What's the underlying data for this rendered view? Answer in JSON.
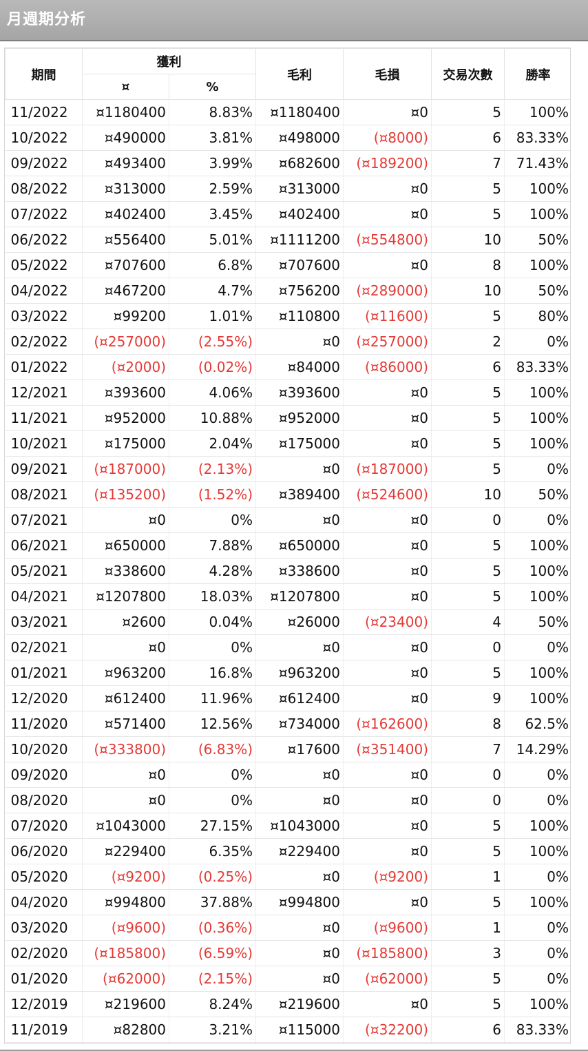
{
  "title": "月週期分析",
  "table": {
    "headers": {
      "period": "期間",
      "profit": "獲利",
      "profit_amount": "¤",
      "profit_pct": "%",
      "gross_profit": "毛利",
      "gross_loss": "毛損",
      "trade_count": "交易次數",
      "win_rate": "勝率"
    },
    "rows": [
      [
        "11/2022",
        "¤1180400",
        "8.83%",
        "¤1180400",
        "¤0",
        "5",
        "100%"
      ],
      [
        "10/2022",
        "¤490000",
        "3.81%",
        "¤498000",
        "(¤8000)",
        "6",
        "83.33%"
      ],
      [
        "09/2022",
        "¤493400",
        "3.99%",
        "¤682600",
        "(¤189200)",
        "7",
        "71.43%"
      ],
      [
        "08/2022",
        "¤313000",
        "2.59%",
        "¤313000",
        "¤0",
        "5",
        "100%"
      ],
      [
        "07/2022",
        "¤402400",
        "3.45%",
        "¤402400",
        "¤0",
        "5",
        "100%"
      ],
      [
        "06/2022",
        "¤556400",
        "5.01%",
        "¤1111200",
        "(¤554800)",
        "10",
        "50%"
      ],
      [
        "05/2022",
        "¤707600",
        "6.8%",
        "¤707600",
        "¤0",
        "8",
        "100%"
      ],
      [
        "04/2022",
        "¤467200",
        "4.7%",
        "¤756200",
        "(¤289000)",
        "10",
        "50%"
      ],
      [
        "03/2022",
        "¤99200",
        "1.01%",
        "¤110800",
        "(¤11600)",
        "5",
        "80%"
      ],
      [
        "02/2022",
        "(¤257000)",
        "(2.55%)",
        "¤0",
        "(¤257000)",
        "2",
        "0%"
      ],
      [
        "01/2022",
        "(¤2000)",
        "(0.02%)",
        "¤84000",
        "(¤86000)",
        "6",
        "83.33%"
      ],
      [
        "12/2021",
        "¤393600",
        "4.06%",
        "¤393600",
        "¤0",
        "5",
        "100%"
      ],
      [
        "11/2021",
        "¤952000",
        "10.88%",
        "¤952000",
        "¤0",
        "5",
        "100%"
      ],
      [
        "10/2021",
        "¤175000",
        "2.04%",
        "¤175000",
        "¤0",
        "5",
        "100%"
      ],
      [
        "09/2021",
        "(¤187000)",
        "(2.13%)",
        "¤0",
        "(¤187000)",
        "5",
        "0%"
      ],
      [
        "08/2021",
        "(¤135200)",
        "(1.52%)",
        "¤389400",
        "(¤524600)",
        "10",
        "50%"
      ],
      [
        "07/2021",
        "¤0",
        "0%",
        "¤0",
        "¤0",
        "0",
        "0%"
      ],
      [
        "06/2021",
        "¤650000",
        "7.88%",
        "¤650000",
        "¤0",
        "5",
        "100%"
      ],
      [
        "05/2021",
        "¤338600",
        "4.28%",
        "¤338600",
        "¤0",
        "5",
        "100%"
      ],
      [
        "04/2021",
        "¤1207800",
        "18.03%",
        "¤1207800",
        "¤0",
        "5",
        "100%"
      ],
      [
        "03/2021",
        "¤2600",
        "0.04%",
        "¤26000",
        "(¤23400)",
        "4",
        "50%"
      ],
      [
        "02/2021",
        "¤0",
        "0%",
        "¤0",
        "¤0",
        "0",
        "0%"
      ],
      [
        "01/2021",
        "¤963200",
        "16.8%",
        "¤963200",
        "¤0",
        "5",
        "100%"
      ],
      [
        "12/2020",
        "¤612400",
        "11.96%",
        "¤612400",
        "¤0",
        "9",
        "100%"
      ],
      [
        "11/2020",
        "¤571400",
        "12.56%",
        "¤734000",
        "(¤162600)",
        "8",
        "62.5%"
      ],
      [
        "10/2020",
        "(¤333800)",
        "(6.83%)",
        "¤17600",
        "(¤351400)",
        "7",
        "14.29%"
      ],
      [
        "09/2020",
        "¤0",
        "0%",
        "¤0",
        "¤0",
        "0",
        "0%"
      ],
      [
        "08/2020",
        "¤0",
        "0%",
        "¤0",
        "¤0",
        "0",
        "0%"
      ],
      [
        "07/2020",
        "¤1043000",
        "27.15%",
        "¤1043000",
        "¤0",
        "5",
        "100%"
      ],
      [
        "06/2020",
        "¤229400",
        "6.35%",
        "¤229400",
        "¤0",
        "5",
        "100%"
      ],
      [
        "05/2020",
        "(¤9200)",
        "(0.25%)",
        "¤0",
        "(¤9200)",
        "1",
        "0%"
      ],
      [
        "04/2020",
        "¤994800",
        "37.88%",
        "¤994800",
        "¤0",
        "5",
        "100%"
      ],
      [
        "03/2020",
        "(¤9600)",
        "(0.36%)",
        "¤0",
        "(¤9600)",
        "1",
        "0%"
      ],
      [
        "02/2020",
        "(¤185800)",
        "(6.59%)",
        "¤0",
        "(¤185800)",
        "3",
        "0%"
      ],
      [
        "01/2020",
        "(¤62000)",
        "(2.15%)",
        "¤0",
        "(¤62000)",
        "5",
        "0%"
      ],
      [
        "12/2019",
        "¤219600",
        "8.24%",
        "¤219600",
        "¤0",
        "5",
        "100%"
      ],
      [
        "11/2019",
        "¤82800",
        "3.21%",
        "¤115000",
        "(¤32200)",
        "6",
        "83.33%"
      ]
    ]
  },
  "colors": {
    "negative": "#e53935",
    "title_bar": "#a9a9a9"
  }
}
